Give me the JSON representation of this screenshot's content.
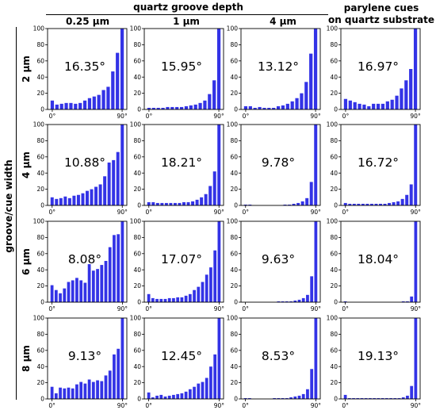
{
  "figure": {
    "depth_header": "quartz groove depth",
    "column_headers": [
      "0.25 µm",
      "1 µm",
      "4 µm",
      "parylene cues\non quartz substrate"
    ],
    "width_axis_label": "groove/cue width",
    "row_headers": [
      "2 µm",
      "4 µm",
      "6 µm",
      "8 µm"
    ],
    "bar_color": "#3333e6"
  },
  "chart_data": [
    {
      "type": "bar",
      "row": "2 µm",
      "column": "0.25 µm",
      "annotation": "16.35°",
      "x_tick_labels": [
        "0°",
        "90°"
      ],
      "y_ticks": [
        0,
        20,
        40,
        60,
        80,
        100
      ],
      "ylim": [
        0,
        100
      ],
      "values": [
        11,
        6,
        7,
        8,
        8,
        7,
        8,
        11,
        14,
        16,
        18,
        24,
        28,
        47,
        70,
        100
      ]
    },
    {
      "type": "bar",
      "row": "2 µm",
      "column": "1 µm",
      "annotation": "15.95°",
      "x_tick_labels": [
        "0°",
        "90°"
      ],
      "y_ticks": [
        0,
        20,
        40,
        60,
        80,
        100
      ],
      "ylim": [
        0,
        100
      ],
      "values": [
        2,
        2,
        2,
        2,
        3,
        3,
        3,
        3,
        4,
        5,
        6,
        8,
        11,
        19,
        36,
        100
      ]
    },
    {
      "type": "bar",
      "row": "2 µm",
      "column": "4 µm",
      "annotation": "13.12°",
      "x_tick_labels": [
        "0°",
        "90°"
      ],
      "y_ticks": [
        0,
        20,
        40,
        60,
        80,
        100
      ],
      "ylim": [
        0,
        100
      ],
      "values": [
        4,
        4,
        2,
        3,
        2,
        2,
        2,
        4,
        5,
        7,
        10,
        14,
        20,
        34,
        69,
        100
      ]
    },
    {
      "type": "bar",
      "row": "2 µm",
      "column": "parylene cues on quartz substrate",
      "annotation": "16.97°",
      "x_tick_labels": [
        "0°",
        "90°"
      ],
      "y_ticks": [
        0,
        20,
        40,
        60,
        80,
        100
      ],
      "ylim": [
        0,
        100
      ],
      "values": [
        13,
        11,
        9,
        7,
        6,
        4,
        7,
        7,
        7,
        10,
        12,
        17,
        26,
        36,
        50,
        100
      ]
    },
    {
      "type": "bar",
      "row": "4 µm",
      "column": "0.25 µm",
      "annotation": "10.88°",
      "x_tick_labels": [
        "0°",
        "90°"
      ],
      "y_ticks": [
        0,
        20,
        40,
        60,
        80,
        100
      ],
      "ylim": [
        0,
        100
      ],
      "values": [
        10,
        8,
        9,
        11,
        9,
        12,
        13,
        15,
        18,
        20,
        23,
        26,
        36,
        53,
        56,
        66,
        100
      ]
    },
    {
      "type": "bar",
      "row": "4 µm",
      "column": "1 µm",
      "annotation": "18.21°",
      "x_tick_labels": [
        "0°",
        "90°"
      ],
      "y_ticks": [
        0,
        20,
        40,
        60,
        80,
        100
      ],
      "ylim": [
        0,
        100
      ],
      "values": [
        4,
        4,
        3,
        3,
        3,
        3,
        3,
        3,
        4,
        4,
        5,
        7,
        10,
        14,
        24,
        42,
        100
      ]
    },
    {
      "type": "bar",
      "row": "4 µm",
      "column": "4 µm",
      "annotation": "9.78°",
      "x_tick_labels": [
        "0°",
        "90°"
      ],
      "y_ticks": [
        0,
        20,
        40,
        60,
        80,
        100
      ],
      "ylim": [
        0,
        100
      ],
      "values": [
        1,
        1,
        0,
        0,
        0,
        0,
        0,
        0,
        0,
        1,
        1,
        2,
        3,
        5,
        9,
        29,
        100
      ]
    },
    {
      "type": "bar",
      "row": "4 µm",
      "column": "parylene cues on quartz substrate",
      "annotation": "16.72°",
      "x_tick_labels": [
        "0°",
        "90°"
      ],
      "y_ticks": [
        0,
        20,
        40,
        60,
        80,
        100
      ],
      "ylim": [
        0,
        100
      ],
      "values": [
        3,
        2,
        2,
        2,
        2,
        2,
        2,
        2,
        2,
        2,
        3,
        4,
        5,
        8,
        13,
        26,
        100
      ]
    },
    {
      "type": "bar",
      "row": "6 µm",
      "column": "0.25 µm",
      "annotation": "8.08°",
      "x_tick_labels": [
        "0°",
        "90°"
      ],
      "y_ticks": [
        0,
        20,
        40,
        60,
        80,
        100
      ],
      "ylim": [
        0,
        100
      ],
      "values": [
        21,
        15,
        11,
        17,
        25,
        27,
        30,
        27,
        24,
        47,
        39,
        41,
        46,
        51,
        68,
        83,
        84,
        100
      ]
    },
    {
      "type": "bar",
      "row": "6 µm",
      "column": "1 µm",
      "annotation": "17.07°",
      "x_tick_labels": [
        "0°",
        "90°"
      ],
      "y_ticks": [
        0,
        20,
        40,
        60,
        80,
        100
      ],
      "ylim": [
        0,
        100
      ],
      "values": [
        10,
        5,
        4,
        4,
        4,
        5,
        5,
        6,
        6,
        8,
        10,
        15,
        19,
        25,
        34,
        43,
        64,
        100
      ]
    },
    {
      "type": "bar",
      "row": "6 µm",
      "column": "4 µm",
      "annotation": "9.63°",
      "x_tick_labels": [
        "0°",
        "90°"
      ],
      "y_ticks": [
        0,
        20,
        40,
        60,
        80,
        100
      ],
      "ylim": [
        0,
        100
      ],
      "values": [
        0,
        0,
        0,
        0,
        0,
        0,
        0,
        0,
        1,
        1,
        1,
        1,
        2,
        3,
        5,
        9,
        32,
        100
      ]
    },
    {
      "type": "bar",
      "row": "6 µm",
      "column": "parylene cues on quartz substrate",
      "annotation": "18.04°",
      "x_tick_labels": [
        "0°",
        "90°"
      ],
      "y_ticks": [
        0,
        20,
        40,
        60,
        80,
        100
      ],
      "ylim": [
        0,
        100
      ],
      "values": [
        1,
        0,
        0,
        0,
        0,
        0,
        0,
        0,
        0,
        0,
        0,
        0,
        0,
        0,
        1,
        1,
        7,
        100
      ]
    },
    {
      "type": "bar",
      "row": "8 µm",
      "column": "0.25 µm",
      "annotation": "9.13°",
      "x_tick_labels": [
        "0°",
        "90°"
      ],
      "y_ticks": [
        0,
        20,
        40,
        60,
        80,
        100
      ],
      "ylim": [
        0,
        100
      ],
      "values": [
        15,
        7,
        14,
        13,
        14,
        13,
        18,
        21,
        19,
        24,
        21,
        23,
        22,
        29,
        35,
        55,
        62,
        100
      ]
    },
    {
      "type": "bar",
      "row": "8 µm",
      "column": "1 µm",
      "annotation": "12.45°",
      "x_tick_labels": [
        "0°",
        "90°"
      ],
      "y_ticks": [
        0,
        20,
        40,
        60,
        80,
        100
      ],
      "ylim": [
        0,
        100
      ],
      "values": [
        8,
        2,
        4,
        5,
        3,
        4,
        5,
        6,
        7,
        9,
        12,
        15,
        19,
        21,
        26,
        40,
        55,
        100
      ]
    },
    {
      "type": "bar",
      "row": "8 µm",
      "column": "4 µm",
      "annotation": "8.53°",
      "x_tick_labels": [
        "0°",
        "90°"
      ],
      "y_ticks": [
        0,
        20,
        40,
        60,
        80,
        100
      ],
      "ylim": [
        0,
        100
      ],
      "values": [
        1,
        1,
        0,
        0,
        0,
        0,
        0,
        1,
        1,
        1,
        1,
        2,
        3,
        4,
        6,
        12,
        37,
        100
      ]
    },
    {
      "type": "bar",
      "row": "8 µm",
      "column": "parylene cues on quartz substrate",
      "annotation": "19.13°",
      "x_tick_labels": [
        "0°",
        "90°"
      ],
      "y_ticks": [
        0,
        20,
        40,
        60,
        80,
        100
      ],
      "ylim": [
        0,
        100
      ],
      "values": [
        5,
        1,
        1,
        1,
        1,
        1,
        1,
        1,
        1,
        1,
        1,
        1,
        1,
        1,
        2,
        4,
        16,
        100
      ]
    }
  ]
}
